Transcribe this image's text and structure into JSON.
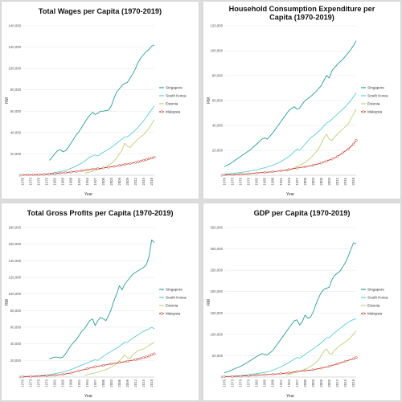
{
  "colors": {
    "Singapore": "#2a9d96",
    "South Korea": "#5ccbd6",
    "Estonia": "#bdd07a",
    "Malaysia": "#c0392b"
  },
  "chart_data": [
    {
      "type": "line",
      "title": "Total Wages per Capita (1970-2019)",
      "xlabel": "Year",
      "ylabel": "RM",
      "ylim": [
        0,
        140000
      ],
      "yticks": [
        "0",
        "20,000",
        "40,000",
        "60,000",
        "80,000",
        "100,000",
        "120,000",
        "140,000"
      ],
      "xticks": [
        "1970",
        "1973",
        "1976",
        "1979",
        "1982",
        "1985",
        "1988",
        "1991",
        "1994",
        "1997",
        "2000",
        "2003",
        "2006",
        "2009",
        "2012",
        "2015",
        "2018"
      ],
      "legend": [
        "Singapore",
        "South Korea",
        "Estonia",
        "Malaysia"
      ],
      "legend_position": "right",
      "series": [
        {
          "name": "Singapore",
          "x": [
            1980,
            1981,
            1982,
            1983,
            1984,
            1985,
            1986,
            1987,
            1988,
            1989,
            1990,
            1991,
            1992,
            1993,
            1994,
            1995,
            1996,
            1997,
            1998,
            1999,
            2000,
            2001,
            2002,
            2003,
            2004,
            2005,
            2006,
            2007,
            2008,
            2009,
            2010,
            2011,
            2012,
            2013,
            2014,
            2015,
            2016,
            2017,
            2018,
            2019
          ],
          "y": [
            14000,
            17000,
            20000,
            23000,
            24000,
            22000,
            23000,
            26000,
            30000,
            34000,
            38000,
            41000,
            45000,
            49000,
            53000,
            56000,
            59000,
            57000,
            58000,
            60000,
            60000,
            60500,
            61000,
            65000,
            72000,
            78000,
            81000,
            84000,
            86000,
            87000,
            91000,
            95000,
            100000,
            106000,
            110000,
            113000,
            116000,
            118000,
            121000,
            122000
          ]
        },
        {
          "name": "South Korea",
          "x": [
            1975,
            1977,
            1979,
            1981,
            1983,
            1985,
            1987,
            1989,
            1991,
            1993,
            1995,
            1997,
            1998,
            1999,
            2001,
            2003,
            2005,
            2007,
            2008,
            2009,
            2011,
            2013,
            2015,
            2017,
            2019
          ],
          "y": [
            500,
            800,
            1200,
            2000,
            3000,
            4000,
            5500,
            7500,
            10000,
            13000,
            17000,
            19000,
            18000,
            20000,
            23000,
            26000,
            30000,
            34000,
            36000,
            36000,
            40000,
            45000,
            51000,
            58000,
            65000
          ]
        },
        {
          "name": "Estonia",
          "x": [
            1993,
            1995,
            1997,
            1999,
            2001,
            2003,
            2005,
            2007,
            2008,
            2009,
            2010,
            2011,
            2013,
            2015,
            2017,
            2019
          ],
          "y": [
            2000,
            3000,
            4500,
            6000,
            8000,
            11000,
            16000,
            24000,
            30000,
            27000,
            26000,
            29000,
            34000,
            38000,
            44000,
            52000
          ]
        },
        {
          "name": "Malaysia",
          "x": [
            1970,
            1972,
            1974,
            1976,
            1978,
            1980,
            1982,
            1984,
            1986,
            1988,
            1990,
            1992,
            1994,
            1996,
            1998,
            2000,
            2002,
            2004,
            2006,
            2008,
            2010,
            2012,
            2013,
            2014,
            2015,
            2016,
            2017,
            2018,
            2019
          ],
          "y": [
            300,
            400,
            500,
            600,
            800,
            1200,
            1500,
            2000,
            2500,
            3000,
            3600,
            4200,
            5000,
            5800,
            6200,
            6800,
            7500,
            8300,
            9200,
            10200,
            11000,
            12000,
            12700,
            13300,
            14000,
            14700,
            15400,
            16100,
            16800
          ]
        }
      ]
    },
    {
      "type": "line",
      "title": "Household Consumption Expenditure per Capita (1970-2019)",
      "xlabel": "Year",
      "ylabel": "RM",
      "ylim": [
        0,
        120000
      ],
      "yticks": [
        "0",
        "20,000",
        "40,000",
        "60,000",
        "80,000",
        "100,000",
        "120,000"
      ],
      "xticks": [
        "1970",
        "1973",
        "1976",
        "1979",
        "1982",
        "1985",
        "1988",
        "1991",
        "1994",
        "1997",
        "2000",
        "2003",
        "2006",
        "2009",
        "2012",
        "2015",
        "2018"
      ],
      "legend": [
        "Singapore",
        "South Korea",
        "Estonia",
        "Malaysia"
      ],
      "legend_position": "right",
      "series": [
        {
          "name": "Singapore",
          "x": [
            1970,
            1972,
            1974,
            1976,
            1978,
            1980,
            1982,
            1984,
            1985,
            1986,
            1988,
            1990,
            1992,
            1994,
            1996,
            1997,
            1998,
            2000,
            2002,
            2004,
            2006,
            2008,
            2009,
            2010,
            2012,
            2014,
            2016,
            2018,
            2019
          ],
          "y": [
            7000,
            9000,
            12000,
            15000,
            18000,
            21000,
            25000,
            29000,
            30000,
            29000,
            34000,
            40000,
            46000,
            52000,
            55000,
            53000,
            54000,
            60000,
            63000,
            67000,
            72000,
            80000,
            78000,
            84000,
            89000,
            93000,
            98000,
            104000,
            108000
          ]
        },
        {
          "name": "South Korea",
          "x": [
            1970,
            1973,
            1976,
            1979,
            1982,
            1985,
            1988,
            1991,
            1994,
            1996,
            1997,
            1998,
            2000,
            2002,
            2004,
            2006,
            2008,
            2009,
            2011,
            2013,
            2015,
            2017,
            2019
          ],
          "y": [
            1000,
            1500,
            2200,
            3200,
            4500,
            6000,
            8000,
            11000,
            15000,
            19000,
            21000,
            20000,
            25000,
            30000,
            33000,
            37000,
            42000,
            43000,
            47000,
            51000,
            55000,
            60000,
            66000
          ]
        },
        {
          "name": "Estonia",
          "x": [
            1993,
            1995,
            1997,
            1999,
            2001,
            2003,
            2005,
            2007,
            2008,
            2009,
            2010,
            2012,
            2014,
            2016,
            2018,
            2019
          ],
          "y": [
            3000,
            5000,
            7000,
            9000,
            12000,
            16000,
            21000,
            30000,
            33000,
            29000,
            28000,
            33000,
            37000,
            41000,
            49000,
            53000
          ]
        },
        {
          "name": "Malaysia",
          "x": [
            1970,
            1973,
            1976,
            1979,
            1982,
            1985,
            1988,
            1991,
            1994,
            1997,
            2000,
            2003,
            2006,
            2008,
            2010,
            2012,
            2014,
            2016,
            2018,
            2019
          ],
          "y": [
            300,
            500,
            800,
            1200,
            1800,
            2300,
            2800,
            3600,
            4600,
            5800,
            6800,
            8000,
            9800,
            11500,
            13000,
            15000,
            18000,
            21000,
            25000,
            28000
          ]
        }
      ]
    },
    {
      "type": "line",
      "title": "Total Gross Profits per Capita (1970-2019)",
      "xlabel": "Year",
      "ylabel": "RM",
      "ylim": [
        0,
        180000
      ],
      "yticks": [
        "0",
        "20,000",
        "40,000",
        "60,000",
        "80,000",
        "100,000",
        "120,000",
        "140,000",
        "160,000",
        "180,000"
      ],
      "xticks": [
        "1970",
        "1973",
        "1976",
        "1979",
        "1982",
        "1985",
        "1988",
        "1991",
        "1994",
        "1997",
        "2000",
        "2003",
        "2006",
        "2009",
        "2012",
        "2015",
        "2018"
      ],
      "legend": [
        "Singapore",
        "South Korea",
        "Estonia",
        "Malaysia"
      ],
      "legend_position": "right",
      "series": [
        {
          "name": "Singapore",
          "x": [
            1980,
            1981,
            1982,
            1983,
            1984,
            1985,
            1986,
            1987,
            1988,
            1989,
            1990,
            1991,
            1992,
            1993,
            1994,
            1995,
            1996,
            1997,
            1998,
            1999,
            2000,
            2001,
            2002,
            2003,
            2004,
            2005,
            2006,
            2007,
            2008,
            2009,
            2010,
            2011,
            2012,
            2013,
            2014,
            2015,
            2016,
            2017,
            2018,
            2019
          ],
          "y": [
            22000,
            23000,
            24000,
            24000,
            23000,
            24000,
            28000,
            33000,
            38000,
            42000,
            45000,
            50000,
            55000,
            58000,
            63000,
            68000,
            70000,
            62000,
            68000,
            72000,
            70000,
            68000,
            74000,
            82000,
            92000,
            100000,
            110000,
            105000,
            112000,
            116000,
            120000,
            124000,
            126000,
            128000,
            130000,
            132000,
            135000,
            145000,
            165000,
            162000
          ]
        },
        {
          "name": "South Korea",
          "x": [
            1970,
            1973,
            1976,
            1979,
            1982,
            1985,
            1988,
            1991,
            1994,
            1997,
            1998,
            2000,
            2003,
            2006,
            2008,
            2009,
            2011,
            2013,
            2015,
            2017,
            2018,
            2019
          ],
          "y": [
            500,
            900,
            1500,
            2500,
            4000,
            6000,
            9000,
            13000,
            17000,
            21000,
            20000,
            25000,
            31000,
            37000,
            42000,
            42000,
            47000,
            51000,
            55000,
            58000,
            60000,
            58000
          ]
        },
        {
          "name": "Estonia",
          "x": [
            1993,
            1995,
            1997,
            1999,
            2001,
            2003,
            2005,
            2007,
            2008,
            2009,
            2010,
            2011,
            2013,
            2015,
            2017,
            2019
          ],
          "y": [
            2000,
            3500,
            5000,
            7000,
            9000,
            12000,
            16000,
            23000,
            27000,
            23000,
            22000,
            27000,
            32000,
            34000,
            38000,
            42000
          ]
        },
        {
          "name": "Malaysia",
          "x": [
            1970,
            1973,
            1976,
            1979,
            1982,
            1985,
            1988,
            1991,
            1994,
            1997,
            2000,
            2003,
            2006,
            2009,
            2012,
            2013,
            2014,
            2015,
            2016,
            2017,
            2018,
            2019
          ],
          "y": [
            500,
            800,
            1200,
            1600,
            2200,
            3200,
            5000,
            7500,
            10000,
            12500,
            14000,
            16000,
            17500,
            19000,
            21000,
            21800,
            22500,
            23500,
            24300,
            25200,
            27000,
            28000
          ]
        }
      ]
    },
    {
      "type": "line",
      "title": "GDP per Capita (1970-2019)",
      "xlabel": "Year",
      "ylabel": "RM",
      "ylim": [
        0,
        350000
      ],
      "yticks": [
        "0",
        "50,000",
        "100,000",
        "150,000",
        "200,000",
        "250,000",
        "300,000",
        "350,000"
      ],
      "xticks": [
        "1970",
        "1973",
        "1976",
        "1979",
        "1982",
        "1985",
        "1988",
        "1991",
        "1994",
        "1997",
        "2000",
        "2003",
        "2006",
        "2009",
        "2012",
        "2015",
        "2018"
      ],
      "legend": [
        "Singapore",
        "South Korea",
        "Estonia",
        "Malaysia"
      ],
      "legend_position": "right",
      "series": [
        {
          "name": "Singapore",
          "x": [
            1970,
            1972,
            1974,
            1976,
            1978,
            1980,
            1982,
            1984,
            1985,
            1986,
            1988,
            1990,
            1992,
            1994,
            1996,
            1997,
            1998,
            1999,
            2000,
            2001,
            2002,
            2003,
            2004,
            2005,
            2006,
            2007,
            2008,
            2009,
            2010,
            2011,
            2012,
            2013,
            2014,
            2015,
            2016,
            2017,
            2018,
            2019
          ],
          "y": [
            10000,
            14000,
            20000,
            25000,
            32000,
            40000,
            48000,
            55000,
            53000,
            52000,
            62000,
            80000,
            97000,
            115000,
            132000,
            134000,
            122000,
            130000,
            145000,
            138000,
            140000,
            152000,
            170000,
            185000,
            198000,
            205000,
            208000,
            210000,
            228000,
            238000,
            243000,
            248000,
            258000,
            268000,
            282000,
            298000,
            314000,
            312000
          ]
        },
        {
          "name": "South Korea",
          "x": [
            1970,
            1973,
            1976,
            1979,
            1982,
            1985,
            1988,
            1991,
            1994,
            1996,
            1997,
            1998,
            2000,
            2003,
            2006,
            2008,
            2009,
            2011,
            2013,
            2015,
            2017,
            2019
          ],
          "y": [
            1000,
            2000,
            3500,
            5500,
            8000,
            11000,
            16000,
            24000,
            34000,
            42000,
            46000,
            44000,
            53000,
            66000,
            80000,
            92000,
            92000,
            104000,
            114000,
            124000,
            132000,
            137000
          ]
        },
        {
          "name": "Estonia",
          "x": [
            1993,
            1995,
            1997,
            1999,
            2001,
            2003,
            2005,
            2007,
            2008,
            2009,
            2010,
            2011,
            2013,
            2015,
            2017,
            2019
          ],
          "y": [
            5000,
            8000,
            12000,
            16000,
            21000,
            29000,
            40000,
            60000,
            66000,
            55000,
            54000,
            63000,
            74000,
            82000,
            93000,
            108000
          ]
        },
        {
          "name": "Malaysia",
          "x": [
            1970,
            1973,
            1976,
            1979,
            1982,
            1985,
            1988,
            1991,
            1994,
            1997,
            2000,
            2003,
            2006,
            2009,
            2012,
            2015,
            2018,
            2019
          ],
          "y": [
            1000,
            1500,
            2200,
            3200,
            4500,
            5500,
            6500,
            8000,
            10000,
            13000,
            15000,
            17000,
            21000,
            25000,
            31000,
            37000,
            43000,
            46000
          ]
        }
      ]
    }
  ]
}
